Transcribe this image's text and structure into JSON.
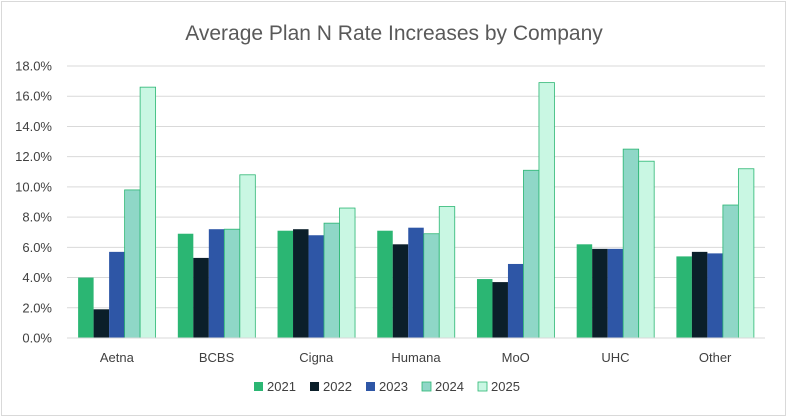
{
  "chart_data": {
    "type": "bar",
    "title": "Average Plan N Rate Increases by Company",
    "xlabel": "",
    "ylabel": "",
    "ylim": [
      0,
      18
    ],
    "y_tick_step": 2,
    "y_tick_labels": [
      "0.0%",
      "2.0%",
      "4.0%",
      "6.0%",
      "8.0%",
      "10.0%",
      "12.0%",
      "14.0%",
      "16.0%",
      "18.0%"
    ],
    "categories": [
      "Aetna",
      "BCBS",
      "Cigna",
      "Humana",
      "MoO",
      "UHC",
      "Other"
    ],
    "series": [
      {
        "name": "2021",
        "color": "#2bb673",
        "values": [
          4.0,
          6.9,
          7.1,
          7.1,
          3.9,
          6.2,
          5.4
        ]
      },
      {
        "name": "2022",
        "color": "#0b1f2a",
        "values": [
          1.9,
          5.3,
          7.2,
          6.2,
          3.7,
          5.9,
          5.7
        ]
      },
      {
        "name": "2023",
        "color": "#2e56a6",
        "values": [
          5.7,
          7.2,
          6.8,
          7.3,
          4.9,
          5.9,
          5.6
        ]
      },
      {
        "name": "2024",
        "color": "#8fd7c7",
        "values": [
          9.8,
          7.2,
          7.6,
          6.9,
          11.1,
          12.5,
          8.8
        ]
      },
      {
        "name": "2025",
        "color": "#c9f7e3",
        "values": [
          16.6,
          10.8,
          8.6,
          8.7,
          16.9,
          11.7,
          11.2
        ]
      }
    ],
    "grid": true,
    "legend_position": "bottom"
  }
}
